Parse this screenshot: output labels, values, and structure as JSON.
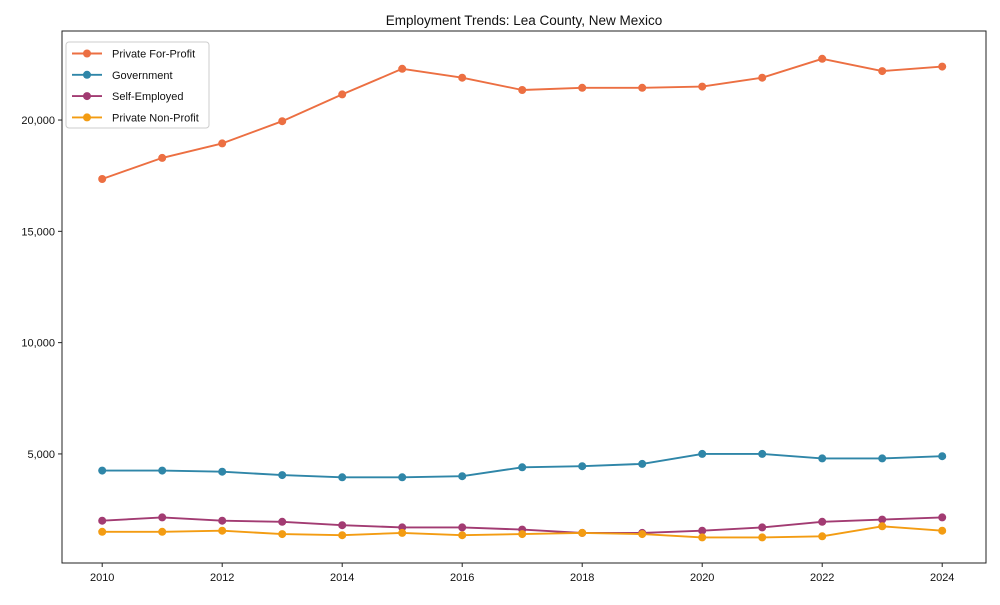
{
  "chart_data": {
    "type": "line",
    "title": "Employment Trends: Lea County, New Mexico",
    "x": [
      2010,
      2011,
      2012,
      2013,
      2014,
      2015,
      2016,
      2017,
      2018,
      2019,
      2020,
      2021,
      2022,
      2023,
      2024
    ],
    "xlim": [
      2009.33,
      2024.73
    ],
    "ylim": [
      100,
      24000
    ],
    "x_ticks": [
      2010,
      2012,
      2014,
      2016,
      2018,
      2020,
      2022,
      2024
    ],
    "x_tick_labels": [
      "2010",
      "2012",
      "2014",
      "2016",
      "2018",
      "2020",
      "2022",
      "2024"
    ],
    "y_ticks": [
      5000,
      10000,
      15000,
      20000
    ],
    "y_tick_labels": [
      "5,000",
      "10,000",
      "15,000",
      "20,000"
    ],
    "grid": false,
    "legend_position": "upper-left",
    "axis_color": "#222222",
    "series": [
      {
        "id": "private-for-profit",
        "name": "Private For-Profit",
        "color": "#EC6F42",
        "values": [
          17350,
          18300,
          18950,
          19950,
          21150,
          22300,
          21900,
          21350,
          21450,
          21450,
          21500,
          21900,
          22750,
          22200,
          22400
        ]
      },
      {
        "id": "government",
        "name": "Government",
        "color": "#2F86A8",
        "values": [
          4250,
          4250,
          4200,
          4050,
          3950,
          3950,
          4000,
          4400,
          4450,
          4550,
          5000,
          5000,
          4800,
          4800,
          4900
        ]
      },
      {
        "id": "self-employed",
        "name": "Self-Employed",
        "color": "#A23B72",
        "values": [
          2000,
          2150,
          2000,
          1950,
          1800,
          1700,
          1700,
          1600,
          1450,
          1450,
          1550,
          1700,
          1950,
          2050,
          2150
        ]
      },
      {
        "id": "private-non-profit",
        "name": "Private Non-Profit",
        "color": "#F39C12",
        "values": [
          1500,
          1500,
          1550,
          1400,
          1350,
          1450,
          1350,
          1400,
          1450,
          1400,
          1250,
          1250,
          1300,
          1750,
          1550
        ]
      }
    ]
  }
}
